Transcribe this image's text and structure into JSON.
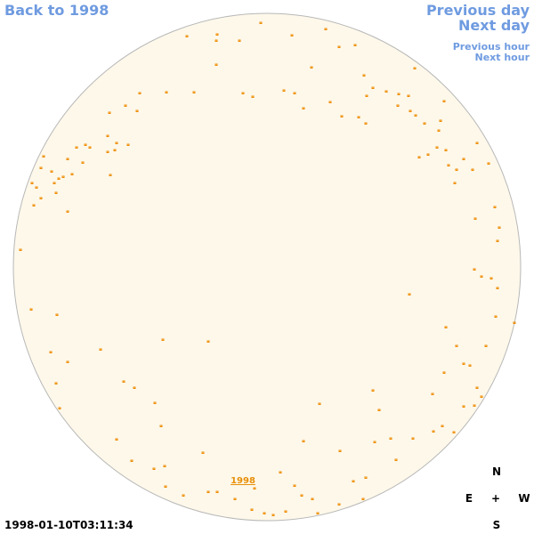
{
  "navigation": {
    "back": "Back to 1998",
    "previous_day": "Previous day",
    "next_day": "Next day",
    "previous_hour": "Previous hour",
    "next_hour": "Next hour"
  },
  "disk_label": "1998",
  "compass": {
    "north": "N",
    "east": "E",
    "center": "+",
    "west": "W",
    "south": "S"
  },
  "timestamp": "1998-01-10T03:11:34"
}
